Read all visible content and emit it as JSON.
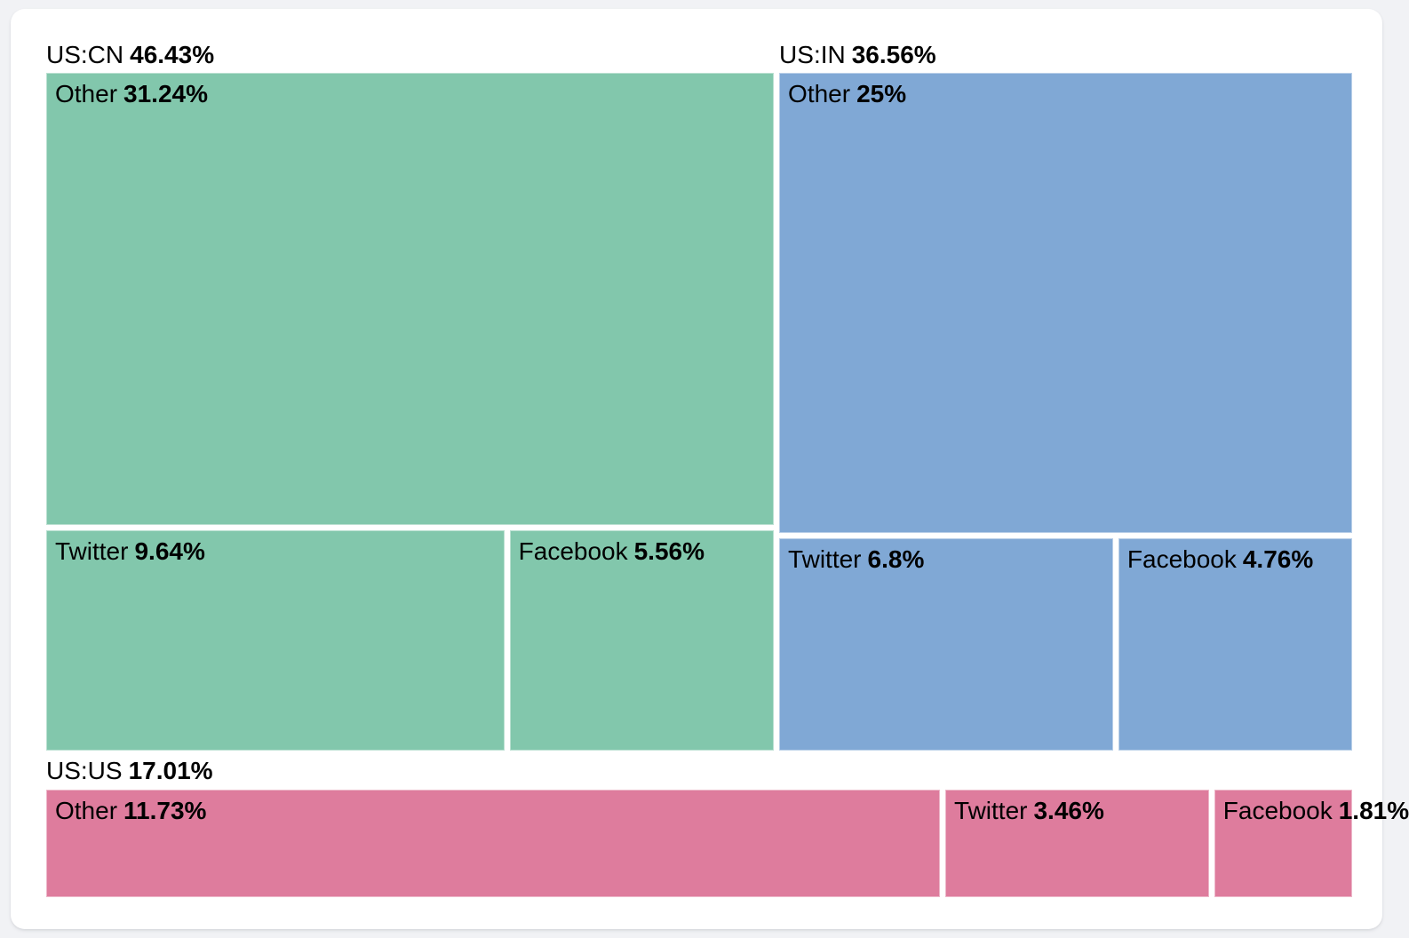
{
  "page": {
    "background": "#f1f2f5",
    "card_background": "#ffffff"
  },
  "chart_data": {
    "type": "treemap",
    "unit": "%",
    "legend": "none",
    "groups": [
      {
        "name": "US:CN",
        "value": "46.43%",
        "color": "#82c7ac",
        "children": [
          {
            "name": "Other",
            "value": "31.24%"
          },
          {
            "name": "Twitter",
            "value": "9.64%"
          },
          {
            "name": "Facebook",
            "value": "5.56%"
          }
        ]
      },
      {
        "name": "US:IN",
        "value": "36.56%",
        "color": "#80a8d5",
        "children": [
          {
            "name": "Other",
            "value": "25%"
          },
          {
            "name": "Twitter",
            "value": "6.8%"
          },
          {
            "name": "Facebook",
            "value": "4.76%"
          }
        ]
      },
      {
        "name": "US:US",
        "value": "17.01%",
        "color": "#de7c9d",
        "children": [
          {
            "name": "Other",
            "value": "11.73%"
          },
          {
            "name": "Twitter",
            "value": "3.46%"
          },
          {
            "name": "Facebook",
            "value": "1.81%"
          }
        ]
      }
    ],
    "layout_hint": {
      "top_row_groups": [
        "US:CN",
        "US:IN"
      ],
      "bottom_row_groups": [
        "US:US"
      ],
      "group_label_position": "above-outside",
      "cell_label_position": "top-left"
    }
  }
}
